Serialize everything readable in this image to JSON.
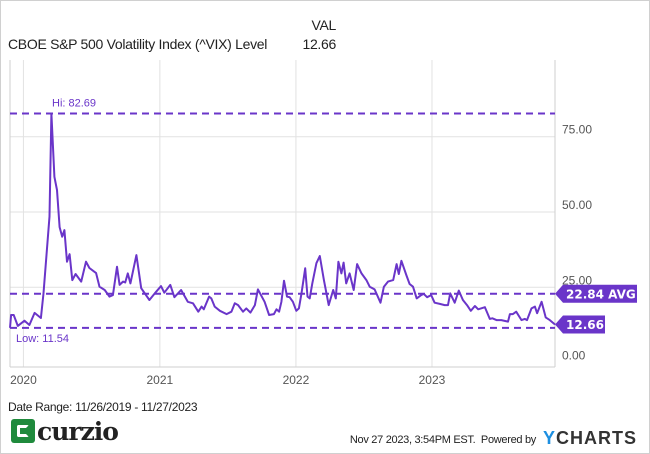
{
  "header": {
    "column_label": "VAL",
    "series_label": "CBOE S&P 500 Volatility Index (^VIX) Level",
    "series_value": "12.66"
  },
  "footer": {
    "date_range": "Date Range: 11/26/2019 - 11/27/2023",
    "timestamp": "Nov 27 2023, 3:54PM EST.",
    "powered_by": "Powered by",
    "brand_logo": "curzio",
    "ycharts_logo_y": "Y",
    "ycharts_logo_rest": "CHARTS"
  },
  "colors": {
    "series": "#6a35c9",
    "grid": "#e2e2e2",
    "axis_text": "#555555"
  },
  "chart_data": {
    "type": "line",
    "title": "",
    "xlabel": "",
    "ylabel": "",
    "xlim": [
      "2019-11-26",
      "2023-11-27"
    ],
    "ylim": [
      0,
      100
    ],
    "x_ticks": [
      {
        "date": "2020-01-01",
        "label": "2020"
      },
      {
        "date": "2021-01-01",
        "label": "2021"
      },
      {
        "date": "2022-01-01",
        "label": "2022"
      },
      {
        "date": "2023-01-01",
        "label": "2023"
      }
    ],
    "y_ticks": [
      {
        "value": 0,
        "label": "0.00"
      },
      {
        "value": 25,
        "label": "25.00"
      },
      {
        "value": 50,
        "label": "50.00"
      },
      {
        "value": 75,
        "label": "75.00"
      }
    ],
    "grid": true,
    "y_axis_side": "right",
    "reference_lines": {
      "high": {
        "value": 82.69,
        "label": "Hi: 82.69"
      },
      "low": {
        "value": 11.54,
        "label": "Low: 11.54"
      },
      "average": {
        "value": 22.84,
        "label": "22.84 AVG"
      }
    },
    "last_value": {
      "value": 12.66,
      "label": "12.66"
    },
    "series": [
      {
        "points": [
          [
            "2019-11-26",
            11.54
          ],
          [
            "2019-11-29",
            15.8
          ],
          [
            "2019-12-06",
            15.8
          ],
          [
            "2019-12-17",
            12.2
          ],
          [
            "2020-01-04",
            13.9
          ],
          [
            "2020-01-17",
            12.5
          ],
          [
            "2020-01-31",
            16.5
          ],
          [
            "2020-02-17",
            14.8
          ],
          [
            "2020-02-24",
            23.0
          ],
          [
            "2020-03-11",
            48.5
          ],
          [
            "2020-03-16",
            82.69
          ],
          [
            "2020-03-24",
            61.7
          ],
          [
            "2020-03-31",
            57.3
          ],
          [
            "2020-04-07",
            45.0
          ],
          [
            "2020-04-14",
            41.8
          ],
          [
            "2020-04-20",
            44.0
          ],
          [
            "2020-04-27",
            33.5
          ],
          [
            "2020-05-04",
            36.0
          ],
          [
            "2020-05-11",
            27.4
          ],
          [
            "2020-05-20",
            29.4
          ],
          [
            "2020-06-04",
            26.9
          ],
          [
            "2020-06-17",
            33.5
          ],
          [
            "2020-06-26",
            31.4
          ],
          [
            "2020-07-14",
            29.7
          ],
          [
            "2020-07-23",
            25.2
          ],
          [
            "2020-08-06",
            24.1
          ],
          [
            "2020-08-19",
            21.9
          ],
          [
            "2020-08-28",
            22.4
          ],
          [
            "2020-09-08",
            31.8
          ],
          [
            "2020-09-15",
            25.8
          ],
          [
            "2020-09-24",
            26.9
          ],
          [
            "2020-09-30",
            26.6
          ],
          [
            "2020-10-07",
            29.6
          ],
          [
            "2020-10-14",
            26.3
          ],
          [
            "2020-10-30",
            35.7
          ],
          [
            "2020-11-12",
            24.7
          ],
          [
            "2020-12-04",
            20.8
          ],
          [
            "2020-12-22",
            23.5
          ],
          [
            "2021-01-04",
            25.4
          ],
          [
            "2021-01-13",
            23.2
          ],
          [
            "2021-01-29",
            25.8
          ],
          [
            "2021-02-09",
            21.7
          ],
          [
            "2021-02-27",
            24.1
          ],
          [
            "2021-03-17",
            20.2
          ],
          [
            "2021-03-31",
            19.7
          ],
          [
            "2021-04-14",
            16.9
          ],
          [
            "2021-04-23",
            18.6
          ],
          [
            "2021-04-29",
            17.7
          ],
          [
            "2021-05-13",
            21.9
          ],
          [
            "2021-05-19",
            21.3
          ],
          [
            "2021-05-28",
            18.6
          ],
          [
            "2021-06-11",
            17.2
          ],
          [
            "2021-06-29",
            16.1
          ],
          [
            "2021-07-12",
            16.9
          ],
          [
            "2021-07-21",
            19.7
          ],
          [
            "2021-07-30",
            19.1
          ],
          [
            "2021-08-12",
            16.9
          ],
          [
            "2021-08-21",
            18.0
          ],
          [
            "2021-09-01",
            16.6
          ],
          [
            "2021-09-13",
            19.1
          ],
          [
            "2021-09-21",
            24.3
          ],
          [
            "2021-10-09",
            20.2
          ],
          [
            "2021-10-21",
            15.8
          ],
          [
            "2021-11-03",
            16.1
          ],
          [
            "2021-11-10",
            17.7
          ],
          [
            "2021-11-17",
            16.9
          ],
          [
            "2021-11-23",
            20.2
          ],
          [
            "2021-11-30",
            27.2
          ],
          [
            "2021-12-08",
            21.9
          ],
          [
            "2021-12-15",
            21.7
          ],
          [
            "2021-12-24",
            20.2
          ],
          [
            "2022-01-02",
            17.2
          ],
          [
            "2022-01-09",
            18.0
          ],
          [
            "2022-01-16",
            23.0
          ],
          [
            "2022-01-26",
            31.3
          ],
          [
            "2022-02-01",
            21.9
          ],
          [
            "2022-02-07",
            21.3
          ],
          [
            "2022-02-14",
            26.3
          ],
          [
            "2022-02-25",
            33.0
          ],
          [
            "2022-03-06",
            35.4
          ],
          [
            "2022-03-17",
            27.4
          ],
          [
            "2022-03-30",
            19.1
          ],
          [
            "2022-04-11",
            24.1
          ],
          [
            "2022-04-18",
            21.3
          ],
          [
            "2022-04-25",
            33.5
          ],
          [
            "2022-05-03",
            29.6
          ],
          [
            "2022-05-09",
            33.2
          ],
          [
            "2022-05-16",
            26.3
          ],
          [
            "2022-05-25",
            29.6
          ],
          [
            "2022-06-05",
            24.1
          ],
          [
            "2022-06-14",
            32.7
          ],
          [
            "2022-06-26",
            29.6
          ],
          [
            "2022-07-09",
            27.4
          ],
          [
            "2022-07-18",
            25.2
          ],
          [
            "2022-07-31",
            24.3
          ],
          [
            "2022-08-16",
            19.9
          ],
          [
            "2022-08-25",
            25.2
          ],
          [
            "2022-09-05",
            26.9
          ],
          [
            "2022-09-19",
            27.4
          ],
          [
            "2022-09-28",
            32.7
          ],
          [
            "2022-10-04",
            29.4
          ],
          [
            "2022-10-11",
            33.8
          ],
          [
            "2022-10-24",
            29.1
          ],
          [
            "2022-11-02",
            26.1
          ],
          [
            "2022-11-11",
            25.2
          ],
          [
            "2022-11-21",
            21.3
          ],
          [
            "2022-12-03",
            22.4
          ],
          [
            "2022-12-10",
            22.8
          ],
          [
            "2022-12-19",
            21.7
          ],
          [
            "2022-12-30",
            22.4
          ],
          [
            "2023-01-08",
            19.9
          ],
          [
            "2023-01-22",
            19.5
          ],
          [
            "2023-02-04",
            19.1
          ],
          [
            "2023-02-13",
            19.1
          ],
          [
            "2023-02-19",
            23.0
          ],
          [
            "2023-03-03",
            19.9
          ],
          [
            "2023-03-14",
            23.9
          ],
          [
            "2023-03-25",
            20.8
          ],
          [
            "2023-04-05",
            19.1
          ],
          [
            "2023-04-15",
            17.2
          ],
          [
            "2023-04-26",
            18.8
          ],
          [
            "2023-05-05",
            17.7
          ],
          [
            "2023-05-23",
            18.4
          ],
          [
            "2023-06-05",
            14.5
          ],
          [
            "2023-06-12",
            14.7
          ],
          [
            "2023-06-23",
            14.1
          ],
          [
            "2023-07-06",
            14.1
          ],
          [
            "2023-07-24",
            13.6
          ],
          [
            "2023-07-29",
            16.1
          ],
          [
            "2023-08-06",
            16.1
          ],
          [
            "2023-08-15",
            16.9
          ],
          [
            "2023-08-29",
            14.1
          ],
          [
            "2023-09-07",
            14.5
          ],
          [
            "2023-09-13",
            14.1
          ],
          [
            "2023-09-25",
            18.0
          ],
          [
            "2023-10-04",
            18.6
          ],
          [
            "2023-10-10",
            16.4
          ],
          [
            "2023-10-22",
            20.2
          ],
          [
            "2023-11-02",
            15.0
          ],
          [
            "2023-11-13",
            14.1
          ],
          [
            "2023-11-27",
            12.66
          ]
        ]
      }
    ]
  }
}
